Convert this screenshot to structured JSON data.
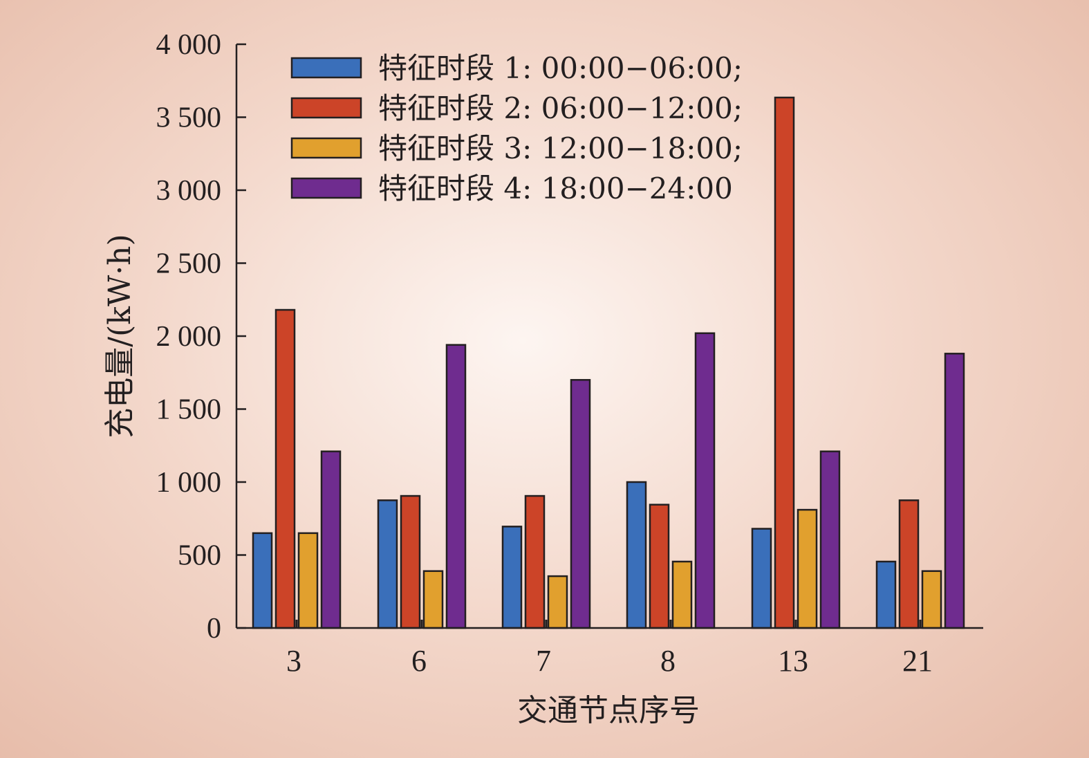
{
  "chart_data": {
    "type": "bar",
    "categories": [
      "3",
      "6",
      "7",
      "8",
      "13",
      "21"
    ],
    "series": [
      {
        "name": "特征时段 1: 00:00−06:00;",
        "color": "#3a6fba",
        "values": [
          650,
          875,
          695,
          1000,
          680,
          455
        ]
      },
      {
        "name": "特征时段 2: 06:00−12:00;",
        "color": "#cc4428",
        "values": [
          2180,
          905,
          905,
          845,
          3635,
          875
        ]
      },
      {
        "name": "特征时段 3: 12:00−18:00;",
        "color": "#e1a02e",
        "values": [
          650,
          390,
          355,
          455,
          810,
          390
        ]
      },
      {
        "name": "特征时段 4: 18:00−24:00",
        "color": "#6f2c8f",
        "values": [
          1210,
          1940,
          1700,
          2020,
          1210,
          1880
        ]
      }
    ],
    "xlabel": "交通节点序号",
    "ylabel": "充电量/(kW·h)",
    "ylim": [
      0,
      4000
    ],
    "yticks": [
      0,
      500,
      1000,
      1500,
      2000,
      2500,
      3000,
      3500,
      4000
    ],
    "ytick_labels": [
      "0",
      "500",
      "1 000",
      "1 500",
      "2 000",
      "2 500",
      "3 000",
      "3 500",
      "4 000"
    ],
    "legend_position": "top-left",
    "grid": false
  }
}
